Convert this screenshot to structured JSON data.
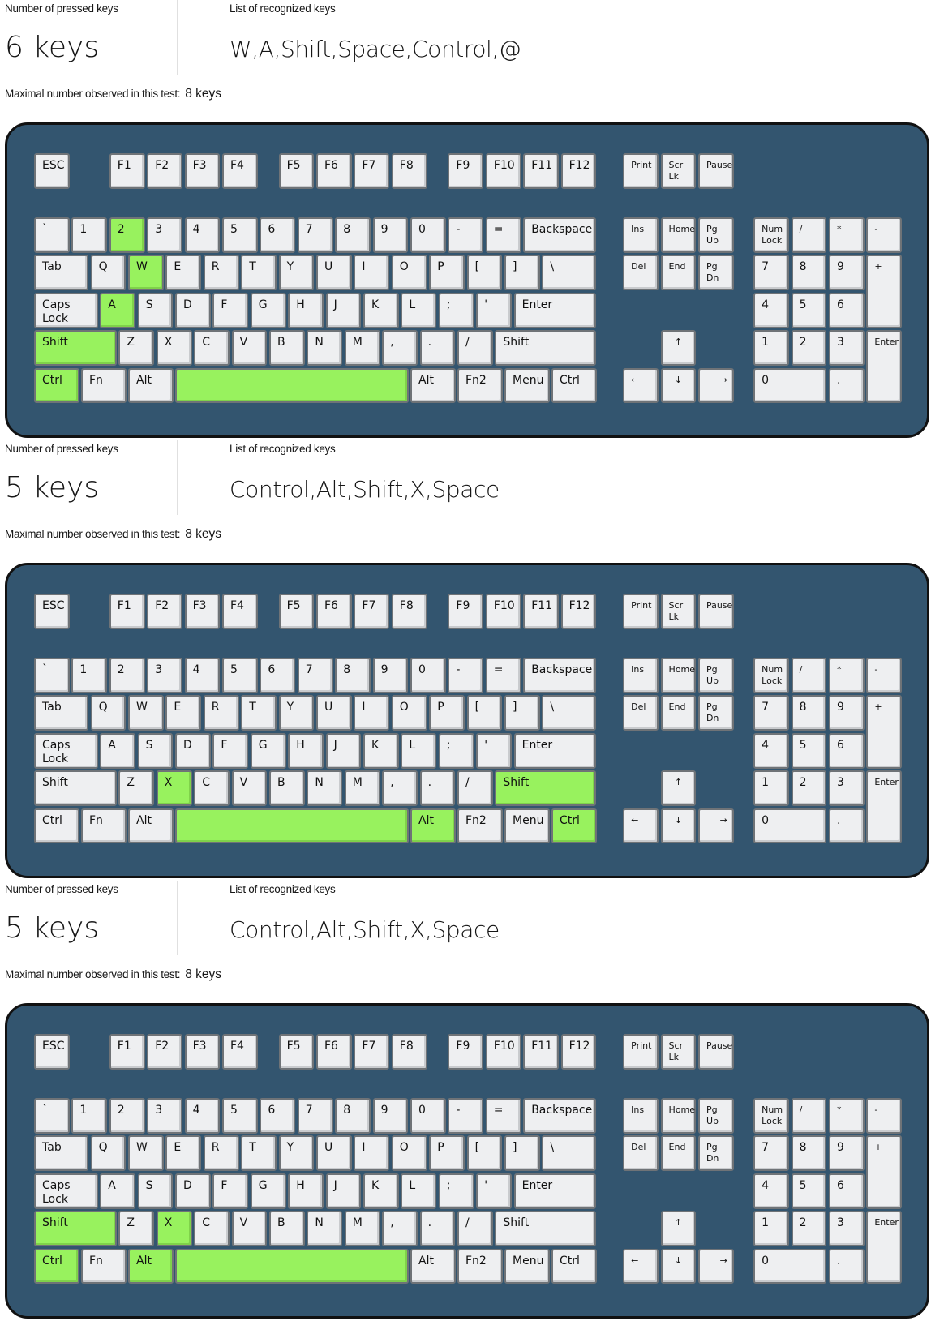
{
  "labels": {
    "pressed_count": "Number of pressed keys",
    "recognized": "List of recognized keys",
    "maximal": "Maximal number observed in this test:"
  },
  "colors": {
    "keyboard": "#33556f",
    "key": "#eeeff1",
    "pressed": "#98f25e"
  },
  "keys": {
    "esc": "ESC",
    "f1": "F1",
    "f2": "F2",
    "f3": "F3",
    "f4": "F4",
    "f5": "F5",
    "f6": "F6",
    "f7": "F7",
    "f8": "F8",
    "f9": "F9",
    "f10": "F10",
    "f11": "F11",
    "f12": "F12",
    "print": "Print",
    "scrlk": "Scr Lk",
    "pause": "Pause",
    "grave": "`",
    "d1": "1",
    "d2": "2",
    "d3": "3",
    "d4": "4",
    "d5": "5",
    "d6": "6",
    "d7": "7",
    "d8": "8",
    "d9": "9",
    "d0": "0",
    "minus": "-",
    "equal": "=",
    "backspace": "Backspace",
    "tab": "Tab",
    "q": "Q",
    "w": "W",
    "e": "E",
    "r": "R",
    "t": "T",
    "y": "Y",
    "u": "U",
    "i": "I",
    "o": "O",
    "p": "P",
    "lbracket": "[",
    "rbracket": "]",
    "backslash": "\\",
    "caps": "Caps\nLock",
    "a": "A",
    "s": "S",
    "d": "D",
    "f": "F",
    "g": "G",
    "h": "H",
    "j": "J",
    "k": "K",
    "l": "L",
    "semicolon": ";",
    "quote": "'",
    "enter": "Enter",
    "lshift": "Shift",
    "z": "Z",
    "x": "X",
    "c": "C",
    "v": "V",
    "b": "B",
    "n": "N",
    "m": "M",
    "comma": ",",
    "period": ".",
    "slash": "/",
    "rshift": "Shift",
    "lctrl": "Ctrl",
    "fn": "Fn",
    "lalt": "Alt",
    "space": "",
    "ralt": "Alt",
    "fn2": "Fn2",
    "menu": "Menu",
    "rctrl": "Ctrl",
    "ins": "Ins",
    "home": "Home",
    "pgup": "Pg Up",
    "del": "Del",
    "end": "End",
    "pgdn": "Pg Dn",
    "up": "↑",
    "left": "←",
    "down": "↓",
    "right": "→",
    "numlock": "Num\nLock",
    "kpdiv": "/",
    "kpmul": "*",
    "kpminus": "-",
    "kp7": "7",
    "kp8": "8",
    "kp9": "9",
    "kpplus": "+",
    "kp4": "4",
    "kp5": "5",
    "kp6": "6",
    "kp1": "1",
    "kp2": "2",
    "kp3": "3",
    "kpenter": "Enter",
    "kp0": "0",
    "kpdot": "."
  },
  "sections": [
    {
      "count": "6 keys",
      "recognized": "W,A,Shift,Space,Control,@",
      "maximal": "8 keys",
      "pressed": [
        "d2",
        "w",
        "a",
        "lshift",
        "lctrl",
        "space"
      ]
    },
    {
      "count": "5 keys",
      "recognized": "Control,Alt,Shift,X,Space",
      "maximal": "8 keys",
      "pressed": [
        "x",
        "rshift",
        "space",
        "ralt",
        "rctrl"
      ]
    },
    {
      "count": "5 keys",
      "recognized": "Control,Alt,Shift,X,Space",
      "maximal": "8 keys",
      "pressed": [
        "lshift",
        "x",
        "lctrl",
        "lalt",
        "space"
      ]
    }
  ]
}
